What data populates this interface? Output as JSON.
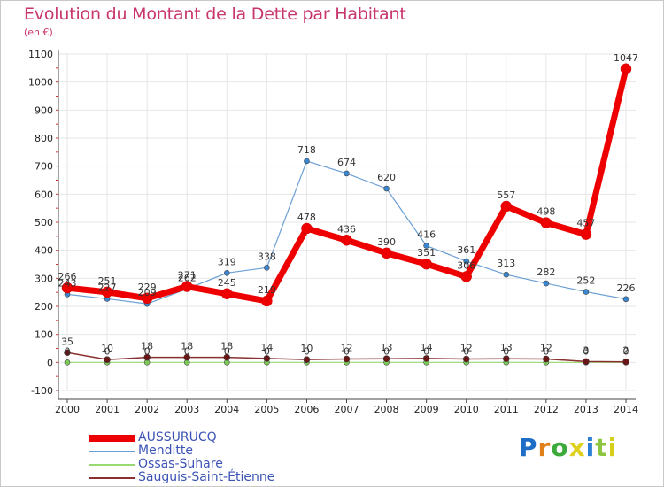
{
  "title": "Evolution du Montant de la Dette par Habitant",
  "unit": "(en €)",
  "brand": {
    "text": "Proxiti",
    "colors": [
      "#1e6ec8",
      "#e0801a",
      "#3cab3c",
      "#e0d020",
      "#2a7fd4",
      "#8cc63e",
      "#d6d01a"
    ]
  },
  "chart_data": {
    "type": "line",
    "title": "Evolution du Montant de la Dette par Habitant",
    "ylabel": "(en €)",
    "ylim": [
      -100,
      1100
    ],
    "yticks": [
      -100,
      0,
      100,
      200,
      300,
      400,
      500,
      600,
      700,
      800,
      900,
      1000,
      1100
    ],
    "categories": [
      "2000",
      "2001",
      "2002",
      "2003",
      "2004",
      "2005",
      "2006",
      "2007",
      "2008",
      "2009",
      "2010",
      "2011",
      "2012",
      "2013",
      "2014"
    ],
    "grid": true,
    "legend_position": "bottom-left",
    "series": [
      {
        "name": "AUSSURUCQ",
        "color": "#ee0000",
        "marker_fill": "#ee0000",
        "values": [
          266,
          251,
          229,
          271,
          245,
          219,
          478,
          436,
          390,
          351,
          306,
          557,
          498,
          457,
          1047
        ],
        "labels": [
          "266",
          "251",
          "229",
          "271",
          "245",
          "219",
          "478",
          "436",
          "390",
          "351",
          "306",
          "557",
          "498",
          "457",
          "1047"
        ]
      },
      {
        "name": "Menditte",
        "color": "#6a9fd4",
        "marker_fill": "#3a86d0",
        "values": [
          243,
          227,
          209,
          262,
          319,
          338,
          718,
          674,
          620,
          416,
          361,
          313,
          282,
          252,
          226
        ],
        "labels": [
          "243",
          "227",
          "209",
          "262",
          "319",
          "338",
          "718",
          "674",
          "620",
          "416",
          "361",
          "313",
          "282",
          "252",
          "226"
        ]
      },
      {
        "name": "Ossas-Suhare",
        "color": "#9ad870",
        "marker_fill": "#7cc95a",
        "values": [
          0,
          0,
          0,
          0,
          0,
          0,
          0,
          0,
          0,
          0,
          0,
          0,
          0,
          0,
          0
        ],
        "labels": [
          "0",
          "0",
          "0",
          "0",
          "0",
          "0",
          "0",
          "0",
          "0",
          "0",
          "0",
          "0",
          "0",
          "0",
          "0"
        ]
      },
      {
        "name": "Sauguis-Saint-Étienne",
        "color": "#8a3030",
        "marker_fill": "#6a1515",
        "values": [
          35,
          10,
          18,
          18,
          18,
          14,
          10,
          12,
          13,
          14,
          12,
          13,
          12,
          3,
          2
        ],
        "labels": [
          "35",
          "10",
          "18",
          "18",
          "18",
          "14",
          "10",
          "12",
          "13",
          "14",
          "12",
          "13",
          "12",
          "3",
          "2"
        ]
      }
    ]
  }
}
